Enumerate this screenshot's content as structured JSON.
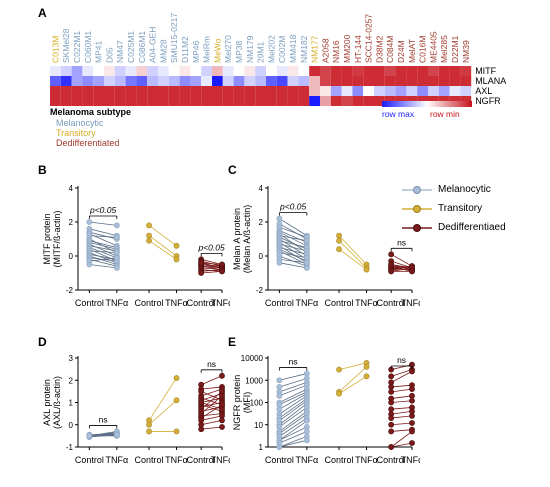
{
  "panel_labels": {
    "A": "A",
    "B": "B",
    "C": "C",
    "D": "D",
    "E": "E"
  },
  "colors": {
    "melanocytic": "#a9bfd9",
    "transitory": "#d4af37",
    "dedifferentiated": "#7b1a1a",
    "melanocytic_text": "#7a9dbe",
    "transitory_text": "#d6ad1f",
    "dedifferentiated_text": "#a03a2c",
    "heat_high": "#1a1aff",
    "heat_low": "#c8141e"
  },
  "heatmap": {
    "rows": [
      "MITF",
      "MLANA",
      "AXL",
      "NGFR"
    ],
    "columns": [
      {
        "name": "C013M",
        "group": "transitory"
      },
      {
        "name": "SKMel28",
        "group": "melanocytic"
      },
      {
        "name": "C022M1",
        "group": "melanocytic"
      },
      {
        "name": "C060M1",
        "group": "melanocytic"
      },
      {
        "name": "MP41",
        "group": "melanocytic"
      },
      {
        "name": "D05",
        "group": "melanocytic"
      },
      {
        "name": "NM47",
        "group": "melanocytic"
      },
      {
        "name": "C025M1",
        "group": "melanocytic"
      },
      {
        "name": "C086M1",
        "group": "melanocytic"
      },
      {
        "name": "A04-GEH",
        "group": "melanocytic"
      },
      {
        "name": "MM28",
        "group": "melanocytic"
      },
      {
        "name": "SMU15-0217",
        "group": "melanocytic"
      },
      {
        "name": "D11M2",
        "group": "melanocytic"
      },
      {
        "name": "MP46",
        "group": "melanocytic"
      },
      {
        "name": "MelRm",
        "group": "melanocytic"
      },
      {
        "name": "MeWo",
        "group": "transitory"
      },
      {
        "name": "Mel270",
        "group": "melanocytic"
      },
      {
        "name": "MP38",
        "group": "melanocytic"
      },
      {
        "name": "NM179",
        "group": "melanocytic"
      },
      {
        "name": "29M1",
        "group": "melanocytic"
      },
      {
        "name": "Mel202",
        "group": "melanocytic"
      },
      {
        "name": "C002M",
        "group": "melanocytic"
      },
      {
        "name": "MM418",
        "group": "melanocytic"
      },
      {
        "name": "NM182",
        "group": "melanocytic"
      },
      {
        "name": "NM177",
        "group": "transitory"
      },
      {
        "name": "A2058",
        "group": "dedifferentiated"
      },
      {
        "name": "NM16",
        "group": "dedifferentiated"
      },
      {
        "name": "MM200",
        "group": "dedifferentiated"
      },
      {
        "name": "HT-144",
        "group": "dedifferentiated"
      },
      {
        "name": "SCC14-0257",
        "group": "dedifferentiated"
      },
      {
        "name": "D38M2",
        "group": "dedifferentiated"
      },
      {
        "name": "C084M",
        "group": "dedifferentiated"
      },
      {
        "name": "D24M",
        "group": "dedifferentiated"
      },
      {
        "name": "MelAT",
        "group": "dedifferentiated"
      },
      {
        "name": "C016M",
        "group": "dedifferentiated"
      },
      {
        "name": "ME4405",
        "group": "dedifferentiated"
      },
      {
        "name": "Mel285",
        "group": "dedifferentiated"
      },
      {
        "name": "D22M1",
        "group": "dedifferentiated"
      },
      {
        "name": "NM39",
        "group": "dedifferentiated"
      }
    ],
    "values": [
      [
        0.55,
        0.6,
        0.7,
        0.55,
        0.5,
        0.45,
        0.6,
        0.55,
        0.4,
        0.6,
        0.55,
        0.5,
        0.45,
        0.5,
        0.6,
        0.35,
        0.55,
        0.5,
        0.45,
        0.6,
        0.5,
        0.55,
        0.45,
        0.5,
        0.05,
        0.1,
        0.05,
        0.05,
        0.08,
        0.05,
        0.05,
        0.1,
        0.05,
        0.05,
        0.05,
        0.1,
        0.05,
        0.05,
        0.08
      ],
      [
        0.85,
        0.95,
        0.7,
        0.75,
        0.7,
        0.6,
        0.65,
        0.8,
        0.85,
        0.65,
        0.6,
        0.65,
        0.75,
        0.7,
        0.55,
        1.0,
        0.6,
        0.75,
        0.6,
        0.65,
        0.85,
        0.9,
        0.6,
        0.65,
        0.35,
        0.1,
        0.05,
        0.05,
        0.05,
        0.05,
        0.05,
        0.05,
        0.05,
        0.05,
        0.05,
        0.05,
        0.05,
        0.05,
        0.05
      ],
      [
        0.05,
        0.05,
        0.05,
        0.05,
        0.05,
        0.05,
        0.05,
        0.05,
        0.05,
        0.05,
        0.05,
        0.05,
        0.05,
        0.05,
        0.05,
        0.05,
        0.05,
        0.05,
        0.05,
        0.05,
        0.05,
        0.05,
        0.05,
        0.05,
        0.35,
        0.45,
        0.7,
        0.55,
        0.75,
        0.5,
        0.6,
        0.65,
        0.7,
        0.6,
        0.75,
        0.6,
        0.7,
        0.55,
        0.6
      ],
      [
        0.05,
        0.05,
        0.05,
        0.05,
        0.05,
        0.05,
        0.05,
        0.05,
        0.05,
        0.05,
        0.05,
        0.05,
        0.05,
        0.05,
        0.05,
        0.05,
        0.05,
        0.05,
        0.05,
        0.05,
        0.05,
        0.05,
        0.05,
        0.05,
        1.0,
        0.3,
        0.05,
        0.1,
        0.05,
        0.05,
        0.05,
        0.05,
        0.05,
        0.05,
        0.05,
        0.05,
        0.05,
        0.05,
        0.05
      ]
    ],
    "colorbar_labels": {
      "max": "row max",
      "min": "row min"
    }
  },
  "subtype_legend": {
    "title": "Melanoma subtype",
    "items": [
      {
        "label": "Melanocytic",
        "group": "melanocytic"
      },
      {
        "label": "Transitory",
        "group": "transitory"
      },
      {
        "label": "Dedifferentiated",
        "group": "dedifferentiated"
      }
    ]
  },
  "group_legend": [
    {
      "label": "Melanocytic",
      "group": "melanocytic"
    },
    {
      "label": "Transitory",
      "group": "transitory"
    },
    {
      "label": "Dedifferentiaed",
      "group": "dedifferentiated"
    }
  ],
  "chart_data": [
    {
      "panel": "B",
      "type": "scatter",
      "ylabel": "MITF protein",
      "ylabel2": "(MITF/ß-actin)",
      "ylim": [
        -2,
        4
      ],
      "yticks": [
        -2,
        0,
        2,
        4
      ],
      "scale": "linear",
      "xticks": [
        "Control",
        "TNFα",
        "Control",
        "TNFα",
        "Control",
        "TNFα"
      ],
      "annotations": [
        {
          "group": "melanocytic",
          "text": "p<0.05"
        },
        {
          "group": "dedifferentiated",
          "text": "p<0.05"
        }
      ],
      "series": [
        {
          "group": "melanocytic",
          "pairs": [
            [
              2.0,
              1.8
            ],
            [
              1.6,
              1.2
            ],
            [
              1.4,
              1.0
            ],
            [
              1.3,
              0.6
            ],
            [
              1.2,
              1.1
            ],
            [
              1.0,
              0.2
            ],
            [
              0.9,
              0.5
            ],
            [
              0.8,
              0.4
            ],
            [
              0.7,
              0.0
            ],
            [
              0.6,
              0.3
            ],
            [
              0.5,
              -0.1
            ],
            [
              0.4,
              -0.3
            ],
            [
              0.3,
              0.2
            ],
            [
              0.2,
              -0.4
            ],
            [
              0.1,
              -0.2
            ],
            [
              0.0,
              -0.5
            ],
            [
              -0.1,
              -0.3
            ],
            [
              -0.2,
              -0.6
            ],
            [
              -0.3,
              -0.1
            ],
            [
              -0.5,
              -0.7
            ]
          ]
        },
        {
          "group": "transitory",
          "pairs": [
            [
              1.8,
              0.6
            ],
            [
              1.2,
              0.0
            ],
            [
              0.9,
              -0.2
            ]
          ]
        },
        {
          "group": "dedifferentiated",
          "pairs": [
            [
              -0.2,
              -0.5
            ],
            [
              -0.3,
              -0.6
            ],
            [
              -0.4,
              -0.7
            ],
            [
              -0.5,
              -0.6
            ],
            [
              -0.5,
              -0.7
            ],
            [
              -0.6,
              -0.8
            ],
            [
              -0.6,
              -0.7
            ],
            [
              -0.7,
              -0.8
            ],
            [
              -0.8,
              -0.9
            ],
            [
              -0.9,
              -0.8
            ],
            [
              -1.0,
              -0.9
            ],
            [
              -0.4,
              -0.5
            ]
          ]
        }
      ]
    },
    {
      "panel": "C",
      "type": "scatter",
      "ylabel": "Melan A protein",
      "ylabel2": "(Melan A/ß-actin)",
      "ylim": [
        -2,
        4
      ],
      "yticks": [
        -2,
        0,
        2,
        4
      ],
      "scale": "linear",
      "xticks": [
        "Control",
        "TNFα",
        "Control",
        "TNFα",
        "Control",
        "TNFα"
      ],
      "annotations": [
        {
          "group": "melanocytic",
          "text": "p<0.05"
        },
        {
          "group": "dedifferentiated",
          "text": "ns"
        }
      ],
      "series": [
        {
          "group": "melanocytic",
          "pairs": [
            [
              2.2,
              1.2
            ],
            [
              1.9,
              1.0
            ],
            [
              1.7,
              1.1
            ],
            [
              1.5,
              0.8
            ],
            [
              1.4,
              0.6
            ],
            [
              1.3,
              0.2
            ],
            [
              1.2,
              0.9
            ],
            [
              1.1,
              0.4
            ],
            [
              1.0,
              0.0
            ],
            [
              0.9,
              0.5
            ],
            [
              0.8,
              -0.2
            ],
            [
              0.7,
              0.3
            ],
            [
              0.6,
              -0.4
            ],
            [
              0.5,
              0.1
            ],
            [
              0.4,
              -0.3
            ],
            [
              0.3,
              -0.5
            ],
            [
              0.2,
              -0.1
            ],
            [
              0.0,
              -0.6
            ],
            [
              -0.2,
              -0.4
            ],
            [
              -0.4,
              -0.7
            ]
          ]
        },
        {
          "group": "transitory",
          "pairs": [
            [
              1.2,
              -0.5
            ],
            [
              0.9,
              -0.7
            ],
            [
              0.4,
              -0.8
            ]
          ]
        },
        {
          "group": "dedifferentiated",
          "pairs": [
            [
              0.1,
              -0.6
            ],
            [
              -0.3,
              -0.7
            ],
            [
              -0.5,
              -0.8
            ],
            [
              -0.6,
              -0.7
            ],
            [
              -0.7,
              -0.8
            ],
            [
              -0.7,
              -0.6
            ],
            [
              -0.8,
              -0.8
            ],
            [
              -0.9,
              -0.7
            ],
            [
              -0.6,
              -0.9
            ],
            [
              -0.8,
              -0.6
            ],
            [
              -0.5,
              -0.7
            ],
            [
              -0.9,
              -0.9
            ]
          ]
        }
      ]
    },
    {
      "panel": "D",
      "type": "scatter",
      "ylabel": "AXL protein",
      "ylabel2": "(AXL/ß-actin)",
      "ylim": [
        -1,
        3
      ],
      "yticks": [
        -1,
        0,
        1,
        2,
        3
      ],
      "scale": "linear",
      "xticks": [
        "Control",
        "TNFα",
        "Control",
        "TNFα",
        "Control",
        "TNFα"
      ],
      "annotations": [
        {
          "group": "melanocytic",
          "text": "ns"
        },
        {
          "group": "dedifferentiated",
          "text": "ns"
        }
      ],
      "series": [
        {
          "group": "melanocytic",
          "pairs": [
            [
              -0.5,
              -0.5
            ],
            [
              -0.5,
              -0.45
            ],
            [
              -0.55,
              -0.4
            ],
            [
              -0.5,
              -0.35
            ],
            [
              -0.45,
              -0.5
            ],
            [
              -0.5,
              -0.4
            ],
            [
              -0.55,
              -0.45
            ],
            [
              -0.5,
              -0.3
            ],
            [
              -0.45,
              -0.4
            ],
            [
              -0.5,
              -0.45
            ]
          ]
        },
        {
          "group": "transitory",
          "pairs": [
            [
              0.2,
              2.1
            ],
            [
              0.0,
              1.1
            ],
            [
              -0.3,
              -0.3
            ]
          ]
        },
        {
          "group": "dedifferentiated",
          "pairs": [
            [
              1.8,
              2.2
            ],
            [
              1.6,
              1.7
            ],
            [
              1.5,
              1.1
            ],
            [
              1.3,
              1.6
            ],
            [
              1.2,
              0.9
            ],
            [
              1.1,
              1.4
            ],
            [
              1.0,
              1.2
            ],
            [
              0.9,
              0.6
            ],
            [
              0.8,
              1.0
            ],
            [
              0.7,
              1.5
            ],
            [
              0.6,
              0.8
            ],
            [
              0.5,
              1.3
            ],
            [
              0.4,
              0.5
            ],
            [
              0.3,
              0.9
            ],
            [
              0.2,
              0.4
            ],
            [
              0.0,
              0.2
            ],
            [
              -0.2,
              -0.1
            ],
            [
              1.0,
              0.7
            ]
          ]
        }
      ]
    },
    {
      "panel": "E",
      "type": "scatter",
      "ylabel": "NGFR protein",
      "ylabel2": "(MFI)",
      "ylim": [
        1,
        10000
      ],
      "yticks": [
        1,
        10,
        100,
        1000,
        10000
      ],
      "scale": "log",
      "xticks": [
        "Control",
        "TNFα",
        "Control",
        "TNFα",
        "Control",
        "TNFα"
      ],
      "annotations": [
        {
          "group": "melanocytic",
          "text": "ns"
        },
        {
          "group": "dedifferentiated",
          "text": "ns"
        }
      ],
      "series": [
        {
          "group": "melanocytic",
          "pairs": [
            [
              1000,
              2000
            ],
            [
              500,
              1200
            ],
            [
              300,
              800
            ],
            [
              200,
              600
            ],
            [
              100,
              400
            ],
            [
              80,
              300
            ],
            [
              50,
              250
            ],
            [
              30,
              200
            ],
            [
              20,
              150
            ],
            [
              15,
              120
            ],
            [
              10,
              90
            ],
            [
              8,
              60
            ],
            [
              5,
              40
            ],
            [
              4,
              30
            ],
            [
              3,
              20
            ],
            [
              2,
              15
            ],
            [
              2,
              8
            ],
            [
              1.5,
              5
            ],
            [
              1,
              3
            ],
            [
              1,
              2
            ]
          ]
        },
        {
          "group": "transitory",
          "pairs": [
            [
              3000,
              6000
            ],
            [
              300,
              4000
            ],
            [
              250,
              1500
            ]
          ]
        },
        {
          "group": "dedifferentiated",
          "pairs": [
            [
              3000,
              5000
            ],
            [
              1500,
              3000
            ],
            [
              800,
              2500
            ],
            [
              500,
              600
            ],
            [
              300,
              400
            ],
            [
              150,
              200
            ],
            [
              100,
              120
            ],
            [
              50,
              60
            ],
            [
              30,
              40
            ],
            [
              20,
              25
            ],
            [
              10,
              12
            ],
            [
              5,
              6
            ],
            [
              1,
              5
            ],
            [
              1,
              1.5
            ]
          ]
        }
      ]
    }
  ]
}
